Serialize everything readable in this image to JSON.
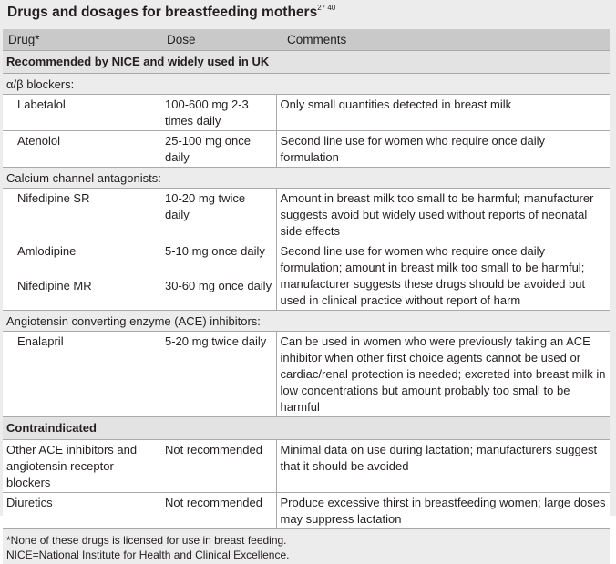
{
  "title": "Drugs and dosages for breastfeeding mothers",
  "title_refs": "27 40",
  "headers": {
    "drug": "Drug*",
    "dose": "Dose",
    "comments": "Comments"
  },
  "sections": {
    "recommended": "Recommended by NICE and widely used in UK",
    "contraindicated": "Contraindicated"
  },
  "groups": {
    "alpha_beta": "α/β blockers:",
    "calcium": "Calcium channel antagonists:",
    "ace": "Angiotensin converting enzyme (ACE) inhibitors:"
  },
  "rows": {
    "labetalol": {
      "drug": "Labetalol",
      "dose": "100-600 mg 2-3 times daily",
      "comment": "Only small quantities detected in breast milk"
    },
    "atenolol": {
      "drug": "Atenolol",
      "dose": "25-100 mg once daily",
      "comment": "Second line use for women who require once daily formulation"
    },
    "nifedipine_sr": {
      "drug": "Nifedipine SR",
      "dose": "10-20 mg twice daily",
      "comment": "Amount in breast milk too small to be harmful; manufacturer suggests avoid but widely used without reports of neonatal side effects"
    },
    "amlodipine": {
      "drug": "Amlodipine",
      "dose": "5-10 mg once daily"
    },
    "nifedipine_mr": {
      "drug": "Nifedipine MR",
      "dose": "30-60 mg once daily"
    },
    "amlo_nife_comment": "Second line use for women who require once daily formulation; amount in breast milk too small to be harmful; manufacturer suggests these drugs should be avoided but used in clinical practice without report of harm",
    "enalapril": {
      "drug": "Enalapril",
      "dose": "5-20 mg twice daily",
      "comment": "Can be used in women who were previously taking an ACE inhibitor when other first choice agents cannot be used or cardiac/renal protection is needed; excreted into breast milk in low concentrations but amount probably too small to be harmful"
    },
    "other_ace": {
      "drug": "Other ACE inhibitors and angiotensin receptor blockers",
      "dose": "Not recommended",
      "comment": "Minimal data on use during lactation; manufacturers suggest that it should be avoided"
    },
    "diuretics": {
      "drug": "Diuretics",
      "dose": "Not recommended",
      "comment": "Produce excessive thirst in breastfeeding women; large doses may suppress lactation"
    }
  },
  "footnotes": [
    "*None of these drugs is licensed for use in breast feeding.",
    "NICE=National Institute for Health and Clinical Excellence."
  ]
}
